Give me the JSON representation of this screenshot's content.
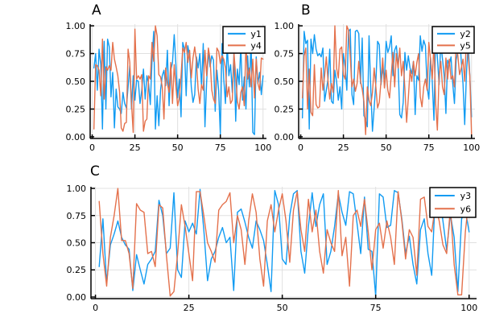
{
  "figure": {
    "background": "#FFFFFF",
    "colors": {
      "series_blue": "#119BF2",
      "series_orange": "#E4714C",
      "grid": "#E0E0E0",
      "axis": "#000000",
      "legend_border": "#000000",
      "legend_background": "#FFFFFF",
      "text": "#000000"
    }
  },
  "chart_data": [
    {
      "id": "A",
      "type": "line",
      "title": "A",
      "xlabel": "",
      "ylabel": "",
      "x_start": 1,
      "x_end": 100,
      "xlim": [
        -1.2,
        102
      ],
      "ylim": [
        -0.015,
        1.015
      ],
      "x_ticks": [
        0,
        25,
        50,
        75,
        100
      ],
      "x_tick_labels": [
        "0",
        "25",
        "50",
        "75",
        "100"
      ],
      "y_ticks": [
        0,
        0.25,
        0.5,
        0.75,
        1
      ],
      "y_tick_labels": [
        "0.00",
        "0.25",
        "0.50",
        "0.75",
        "1.00"
      ],
      "grid": true,
      "legend_position": "top-right",
      "series": [
        {
          "name": "y1",
          "color": "#119BF2",
          "values": [
            0.62,
            0.75,
            0.42,
            0.79,
            0.65,
            0.07,
            0.86,
            0.25,
            0.88,
            0.81,
            0.36,
            0.58,
            0.08,
            0.43,
            0.27,
            0.25,
            0.21,
            0.4,
            0.3,
            0.26,
            0.45,
            0.64,
            0.25,
            0.55,
            0.33,
            0.51,
            0.5,
            0.3,
            0.42,
            0.61,
            0.34,
            0.55,
            0.48,
            0.29,
            0.68,
            0.95,
            0.07,
            0.37,
            0.1,
            0.42,
            0.55,
            0.6,
            0.46,
            0.78,
            0.28,
            0.6,
            0.67,
            0.92,
            0.65,
            0.35,
            0.52,
            0.18,
            0.85,
            0.79,
            0.37,
            0.82,
            0.72,
            0.45,
            0.31,
            0.38,
            0.72,
            0.62,
            0.75,
            0.45,
            0.84,
            0.09,
            0.5,
            0.77,
            0.63,
            0.73,
            0.69,
            0.23,
            0.6,
            0.42,
            0.02,
            0.84,
            0.52,
            0.3,
            0.83,
            0.55,
            0.65,
            0.4,
            0.76,
            0.14,
            0.61,
            0.47,
            0.82,
            0.33,
            0.54,
            0.25,
            0.73,
            0.45,
            0.86,
            0.04,
            0.02,
            0.72,
            0.48,
            0.58,
            0.38,
            0.55
          ]
        },
        {
          "name": "y4",
          "color": "#E4714C",
          "values": [
            0.07,
            0.65,
            0.64,
            0.6,
            0.37,
            0.88,
            0.34,
            0.63,
            0.6,
            0.64,
            0.6,
            0.85,
            0.7,
            0.63,
            0.55,
            0.41,
            0.08,
            0.05,
            0.12,
            0.13,
            0.79,
            0.67,
            0.3,
            0.04,
            0.97,
            0.52,
            0.55,
            0.52,
            0.56,
            0.05,
            0.14,
            0.16,
            0.55,
            0.52,
            0.85,
            0.68,
            1.0,
            0.91,
            0.56,
            0.54,
            0.45,
            0.16,
            0.62,
            0.48,
            0.4,
            0.67,
            0.3,
            0.65,
            0.45,
            0.28,
            0.35,
            0.55,
            0.8,
            0.76,
            0.85,
            0.67,
            0.78,
            0.53,
            0.71,
            0.81,
            0.68,
            0.43,
            0.3,
            0.47,
            0.42,
            0.78,
            0.55,
            0.8,
            0.7,
            0.42,
            0.34,
            0.3,
            0.8,
            0.77,
            0.66,
            0.73,
            0.7,
            0.62,
            0.36,
            0.45,
            0.3,
            0.33,
            0.75,
            0.55,
            0.32,
            0.25,
            0.4,
            0.45,
            0.28,
            0.83,
            0.52,
            0.62,
            0.45,
            0.7,
            0.35,
            0.7,
            0.48,
            0.42,
            0.71,
            0.7
          ]
        }
      ]
    },
    {
      "id": "B",
      "type": "line",
      "title": "B",
      "xlabel": "",
      "ylabel": "",
      "x_start": 1,
      "x_end": 100,
      "xlim": [
        -1.2,
        102
      ],
      "ylim": [
        -0.015,
        1.015
      ],
      "x_ticks": [
        0,
        25,
        50,
        75,
        100
      ],
      "x_tick_labels": [
        "0",
        "25",
        "50",
        "75",
        "100"
      ],
      "y_ticks": [
        0,
        0.25,
        0.5,
        0.75,
        1
      ],
      "y_tick_labels": [
        "0.00",
        "0.25",
        "0.50",
        "0.75",
        "1.00"
      ],
      "grid": true,
      "legend_position": "top-right",
      "series": [
        {
          "name": "y2",
          "color": "#119BF2",
          "values": [
            0.17,
            0.95,
            0.84,
            0.87,
            0.07,
            0.88,
            0.75,
            0.92,
            0.79,
            0.73,
            0.75,
            0.72,
            0.8,
            0.32,
            0.42,
            0.52,
            0.79,
            0.32,
            0.3,
            0.6,
            0.5,
            0.33,
            0.45,
            0.25,
            0.75,
            0.63,
            0.42,
            0.95,
            0.97,
            0.38,
            0.29,
            0.95,
            0.96,
            0.93,
            0.48,
            0.89,
            0.19,
            0.16,
            0.09,
            0.91,
            0.44,
            0.05,
            0.26,
            0.49,
            0.86,
            0.83,
            0.47,
            0.62,
            0.52,
            0.86,
            0.76,
            0.81,
            0.91,
            0.55,
            0.78,
            0.82,
            0.66,
            0.2,
            0.17,
            0.31,
            0.76,
            0.6,
            0.73,
            0.62,
            0.57,
            0.68,
            0.2,
            0.55,
            0.51,
            0.91,
            0.77,
            0.87,
            0.82,
            0.45,
            0.34,
            0.71,
            0.5,
            0.15,
            0.9,
            0.72,
            0.47,
            0.85,
            0.7,
            0.55,
            0.21,
            0.69,
            0.65,
            0.72,
            0.48,
            0.3,
            0.69,
            0.78,
            0.93,
            0.68,
            0.48,
            0.11,
            0.56,
            0.85,
            0.55,
            0.18
          ]
        },
        {
          "name": "y5",
          "color": "#E4714C",
          "values": [
            0.35,
            0.73,
            0.8,
            0.25,
            0.61,
            0.22,
            0.19,
            0.65,
            0.29,
            0.26,
            0.27,
            0.62,
            0.42,
            0.55,
            0.72,
            0.5,
            0.34,
            0.48,
            0.4,
            1.0,
            0.62,
            0.53,
            0.79,
            0.81,
            0.56,
            0.52,
            1.0,
            0.96,
            0.72,
            0.45,
            0.52,
            0.41,
            0.48,
            0.68,
            0.5,
            0.43,
            0.32,
            0.02,
            0.45,
            0.33,
            0.28,
            0.4,
            0.62,
            0.45,
            0.26,
            0.31,
            0.5,
            0.71,
            0.44,
            0.6,
            0.42,
            0.35,
            0.56,
            0.76,
            0.45,
            0.75,
            0.62,
            0.8,
            0.55,
            0.68,
            0.43,
            0.13,
            0.35,
            0.6,
            0.5,
            0.68,
            0.55,
            0.67,
            0.75,
            0.36,
            0.27,
            0.45,
            0.52,
            0.42,
            0.85,
            0.7,
            0.52,
            0.84,
            0.3,
            0.06,
            0.55,
            0.68,
            0.45,
            0.38,
            0.71,
            0.52,
            0.7,
            0.52,
            0.55,
            0.45,
            0.85,
            0.73,
            0.56,
            0.62,
            0.7,
            0.5,
            0.9,
            0.73,
            0.55,
            0.02
          ]
        }
      ]
    },
    {
      "id": "C",
      "type": "line",
      "title": "C",
      "xlabel": "",
      "ylabel": "",
      "x_start": 1,
      "x_end": 100,
      "xlim": [
        -1.2,
        102
      ],
      "ylim": [
        -0.015,
        1.015
      ],
      "x_ticks": [
        0,
        25,
        50,
        75,
        100
      ],
      "x_tick_labels": [
        "0",
        "25",
        "50",
        "75",
        "100"
      ],
      "y_ticks": [
        0,
        0.25,
        0.5,
        0.75,
        1
      ],
      "y_tick_labels": [
        "0.00",
        "0.25",
        "0.50",
        "0.75",
        "1.00"
      ],
      "grid": true,
      "legend_position": "top-right",
      "series": [
        {
          "name": "y3",
          "color": "#119BF2",
          "values": [
            0.28,
            0.72,
            0.13,
            0.48,
            0.58,
            0.7,
            0.55,
            0.48,
            0.44,
            0.06,
            0.39,
            0.25,
            0.12,
            0.3,
            0.35,
            0.42,
            0.89,
            0.75,
            0.4,
            0.45,
            0.96,
            0.25,
            0.18,
            0.7,
            0.6,
            0.68,
            0.58,
            0.99,
            0.62,
            0.15,
            0.35,
            0.42,
            0.55,
            0.64,
            0.5,
            0.55,
            0.06,
            0.78,
            0.81,
            0.69,
            0.55,
            0.45,
            0.7,
            0.62,
            0.52,
            0.3,
            0.05,
            0.98,
            0.85,
            0.35,
            0.3,
            0.75,
            0.95,
            0.98,
            0.42,
            0.22,
            0.65,
            0.96,
            0.65,
            0.85,
            0.95,
            0.3,
            0.42,
            0.65,
            0.95,
            0.78,
            0.66,
            0.97,
            0.95,
            0.68,
            0.4,
            0.92,
            0.44,
            0.42,
            0.01,
            0.95,
            0.92,
            0.64,
            0.66,
            0.98,
            0.96,
            0.72,
            0.4,
            0.56,
            0.3,
            0.12,
            0.62,
            0.72,
            0.4,
            0.2,
            0.98,
            0.96,
            0.7,
            0.43,
            0.76,
            0.55,
            0.05,
            0.72,
            0.8,
            0.6
          ]
        },
        {
          "name": "y6",
          "color": "#E4714C",
          "values": [
            0.88,
            0.4,
            0.1,
            0.55,
            0.75,
            1.0,
            0.52,
            0.52,
            0.4,
            0.08,
            0.86,
            0.8,
            0.78,
            0.4,
            0.42,
            0.28,
            0.85,
            0.82,
            0.38,
            0.01,
            0.05,
            0.4,
            0.85,
            0.65,
            0.4,
            0.15,
            0.97,
            0.97,
            0.75,
            0.5,
            0.42,
            0.32,
            0.8,
            0.85,
            0.88,
            0.96,
            0.5,
            0.75,
            0.62,
            0.3,
            0.7,
            0.95,
            0.78,
            0.35,
            0.1,
            0.7,
            0.85,
            0.6,
            0.8,
            0.95,
            0.7,
            0.32,
            0.8,
            0.97,
            0.62,
            0.42,
            0.9,
            0.6,
            0.8,
            0.42,
            0.22,
            0.62,
            0.5,
            0.42,
            0.98,
            0.38,
            0.55,
            0.1,
            0.75,
            0.8,
            0.65,
            0.9,
            0.6,
            0.25,
            0.62,
            0.68,
            0.45,
            0.7,
            0.55,
            0.3,
            0.97,
            0.7,
            0.35,
            0.62,
            0.55,
            0.2,
            0.9,
            0.92,
            0.65,
            0.6,
            0.85,
            0.7,
            0.48,
            0.4,
            0.82,
            0.3,
            0.02,
            0.02,
            0.6,
            0.92
          ]
        }
      ]
    }
  ]
}
